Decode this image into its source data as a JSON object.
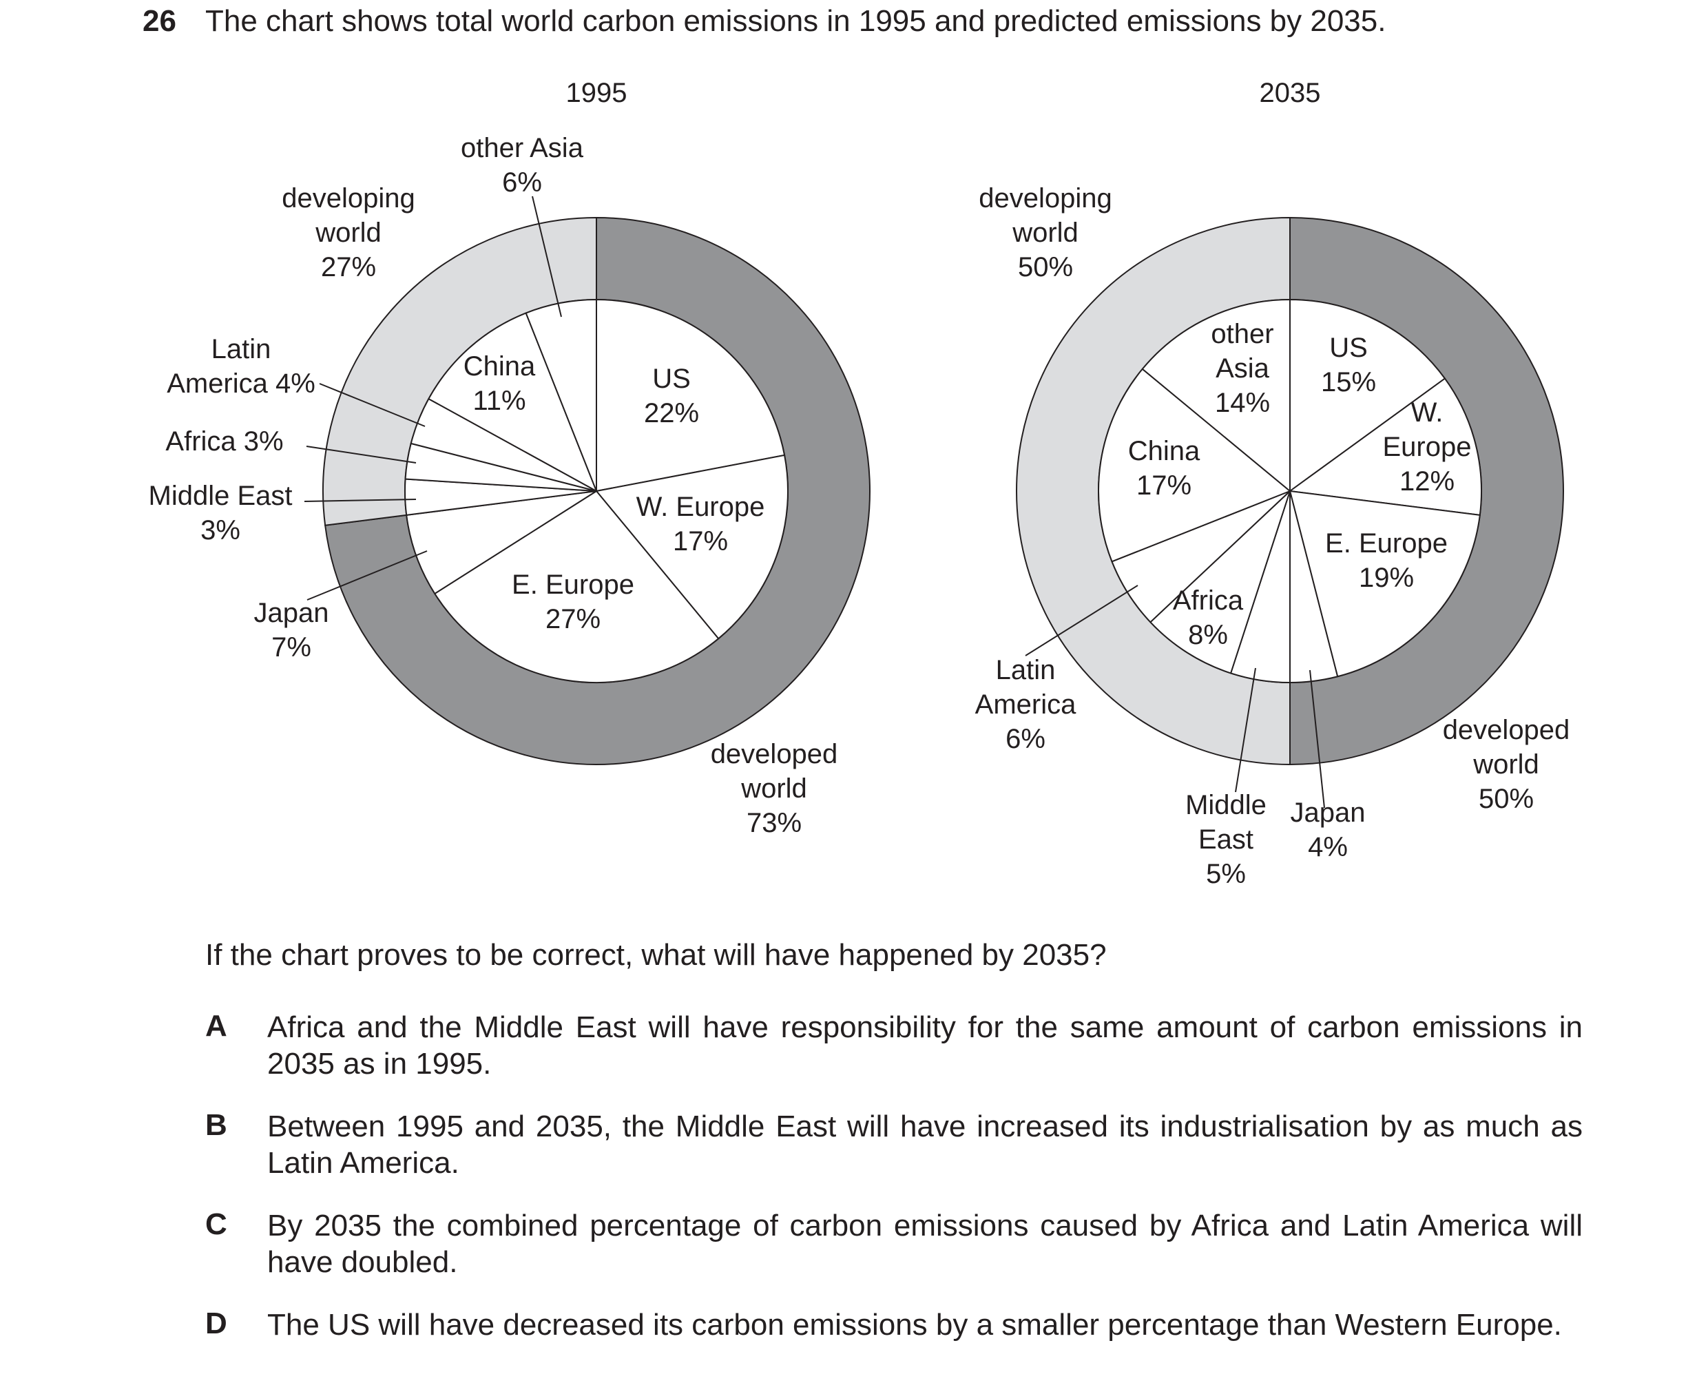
{
  "question": {
    "number": "26",
    "text": "The chart shows total world carbon emissions in 1995 and predicted emissions by 2035.",
    "prompt": "If the chart proves to be correct, what will have happened by 2035?",
    "options": [
      {
        "letter": "A",
        "text": "Africa and the Middle East will have responsibility for the same amount of carbon emissions in 2035 as in 1995."
      },
      {
        "letter": "B",
        "text": "Between 1995 and 2035, the Middle East will have increased its industrialisation by as much as Latin America."
      },
      {
        "letter": "C",
        "text": "By 2035 the combined percentage of carbon emissions caused by Africa and Latin America will have doubled."
      },
      {
        "letter": "D",
        "text": "The US will have decreased its carbon emissions by a smaller percentage than Western Europe."
      }
    ]
  },
  "colors": {
    "developed": "#939496",
    "developing": "#dcdddf",
    "inner": "#ffffff",
    "stroke": "#231f20"
  },
  "chart_data": [
    {
      "type": "pie",
      "title": "1995",
      "inner": [
        {
          "name": "US",
          "value": 22,
          "label": [
            "US",
            "22%"
          ]
        },
        {
          "name": "W. Europe",
          "value": 17,
          "label": [
            "W. Europe",
            "17%"
          ]
        },
        {
          "name": "E. Europe",
          "value": 27,
          "label": [
            "E. Europe",
            "27%"
          ]
        },
        {
          "name": "Japan",
          "value": 7,
          "label": [
            "Japan",
            "7%"
          ]
        },
        {
          "name": "Middle East",
          "value": 3,
          "label": [
            "Middle East",
            "3%"
          ]
        },
        {
          "name": "Africa",
          "value": 3,
          "label": [
            "Africa 3%"
          ]
        },
        {
          "name": "Latin America",
          "value": 4,
          "label": [
            "Latin",
            "America 4%"
          ]
        },
        {
          "name": "China",
          "value": 11,
          "label": [
            "China",
            "11%"
          ]
        },
        {
          "name": "other Asia",
          "value": 6,
          "label": [
            "other Asia",
            "6%"
          ]
        }
      ],
      "outer": [
        {
          "name": "developed world",
          "value": 73,
          "label": [
            "developed",
            "world",
            "73%"
          ]
        },
        {
          "name": "developing world",
          "value": 27,
          "label": [
            "developing",
            "world",
            "27%"
          ]
        }
      ]
    },
    {
      "type": "pie",
      "title": "2035",
      "inner": [
        {
          "name": "US",
          "value": 15,
          "label": [
            "US",
            "15%"
          ]
        },
        {
          "name": "W. Europe",
          "value": 12,
          "label": [
            "W.",
            "Europe",
            "12%"
          ]
        },
        {
          "name": "E. Europe",
          "value": 19,
          "label": [
            "E. Europe",
            "19%"
          ]
        },
        {
          "name": "Japan",
          "value": 4,
          "label": [
            "Japan",
            "4%"
          ]
        },
        {
          "name": "Middle East",
          "value": 5,
          "label": [
            "Middle",
            "East",
            "5%"
          ]
        },
        {
          "name": "Africa",
          "value": 8,
          "label": [
            "Africa",
            "8%"
          ]
        },
        {
          "name": "Latin America",
          "value": 6,
          "label": [
            "Latin",
            "America",
            "6%"
          ]
        },
        {
          "name": "China",
          "value": 17,
          "label": [
            "China",
            "17%"
          ]
        },
        {
          "name": "other Asia",
          "value": 14,
          "label": [
            "other",
            "Asia",
            "14%"
          ]
        }
      ],
      "outer": [
        {
          "name": "developed world",
          "value": 50,
          "label": [
            "developed",
            "world",
            "50%"
          ]
        },
        {
          "name": "developing world",
          "value": 50,
          "label": [
            "developing",
            "world",
            "50%"
          ]
        }
      ]
    }
  ]
}
